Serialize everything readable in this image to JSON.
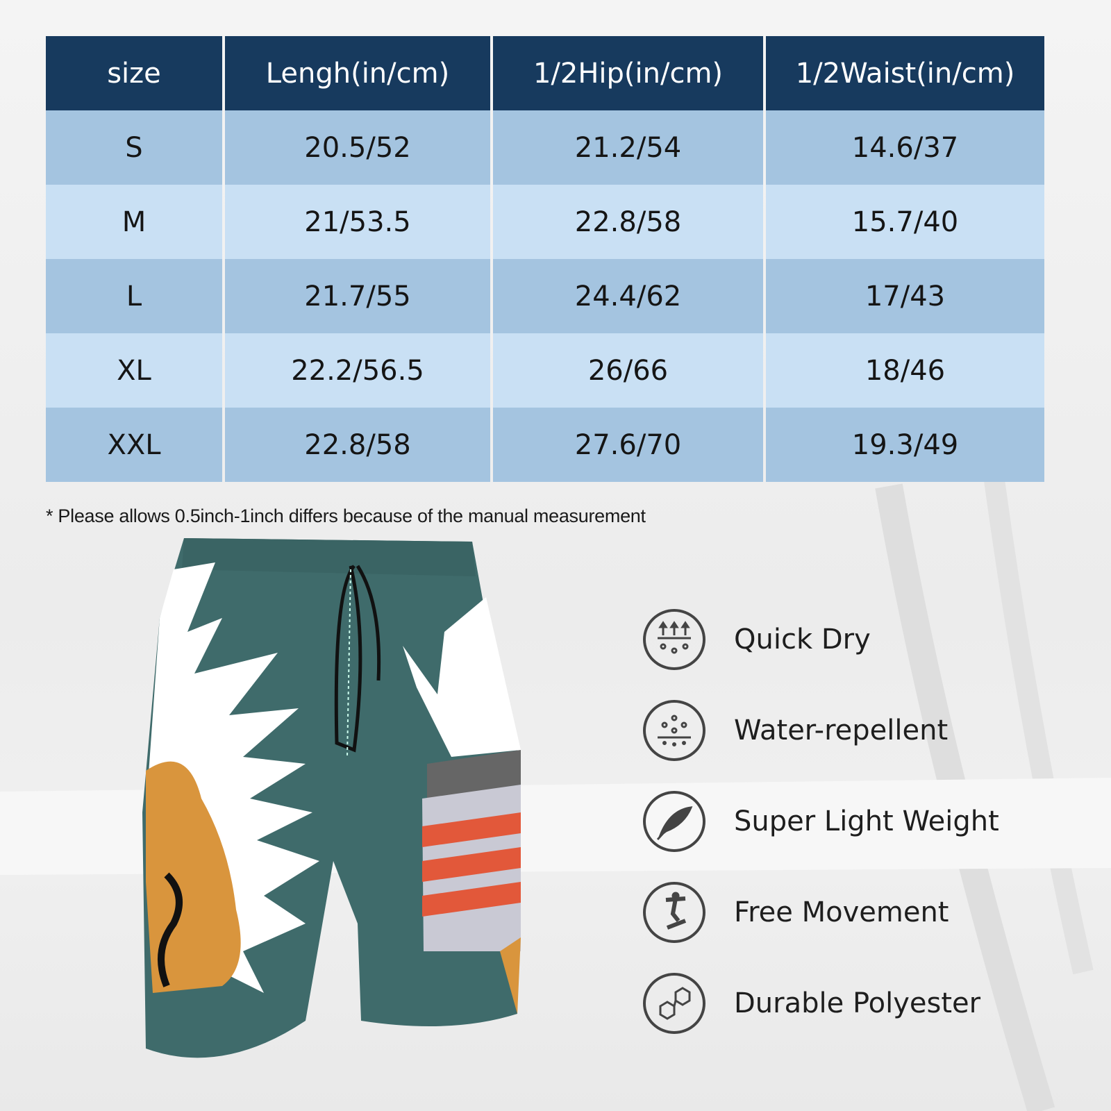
{
  "size_chart": {
    "headers": [
      "size",
      "Lengh(in/cm)",
      "1/2Hip(in/cm)",
      "1/2Waist(in/cm)"
    ],
    "rows": [
      [
        "S",
        "20.5/52",
        "21.2/54",
        "14.6/37"
      ],
      [
        "M",
        "21/53.5",
        "22.8/58",
        "15.7/40"
      ],
      [
        "L",
        "21.7/55",
        "24.4/62",
        "17/43"
      ],
      [
        "XL",
        "22.2/56.5",
        "26/66",
        "18/46"
      ],
      [
        "XXL",
        "22.8/58",
        "27.6/70",
        "19.3/49"
      ]
    ],
    "note": "* Please allows 0.5inch-1inch differs because of the manual measurement"
  },
  "colors": {
    "header_bg": "#173a5e",
    "row_dark": "#a4c4e0",
    "row_light": "#c9e0f4",
    "shorts_main": "#3f6b6b",
    "shorts_accent_orange": "#d9953d",
    "shorts_stripe_red": "#e2583a"
  },
  "features": [
    {
      "icon": "quick-dry-icon",
      "label": "Quick Dry"
    },
    {
      "icon": "water-repellent-icon",
      "label": "Water-repellent"
    },
    {
      "icon": "feather-icon",
      "label": "Super Light Weight"
    },
    {
      "icon": "skateboarder-icon",
      "label": "Free Movement"
    },
    {
      "icon": "hexagon-molecule-icon",
      "label": "Durable Polyester"
    }
  ]
}
